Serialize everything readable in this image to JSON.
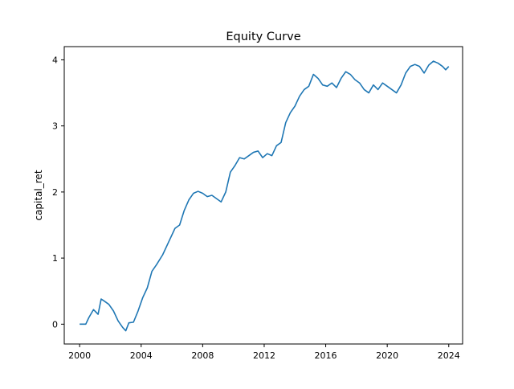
{
  "chart_data": {
    "type": "line",
    "title": "Equity Curve",
    "xlabel": "",
    "ylabel": "capital_ret",
    "xlim": [
      1999.0,
      2024.9
    ],
    "ylim": [
      -0.3,
      4.2
    ],
    "x_ticks": [
      2000,
      2004,
      2008,
      2012,
      2016,
      2020,
      2024
    ],
    "x_tick_labels": [
      "2000",
      "2004",
      "2008",
      "2012",
      "2016",
      "2020",
      "2024"
    ],
    "y_ticks": [
      0,
      1,
      2,
      3,
      4
    ],
    "y_tick_labels": [
      "0",
      "1",
      "2",
      "3",
      "4"
    ],
    "grid": false,
    "series": [
      {
        "name": "",
        "color": "#1f77b4",
        "x": [
          2000.0,
          2000.4,
          2000.6,
          2000.9,
          2001.2,
          2001.4,
          2001.6,
          2001.9,
          2002.2,
          2002.5,
          2002.8,
          2003.0,
          2003.2,
          2003.5,
          2003.8,
          2004.1,
          2004.4,
          2004.7,
          2005.0,
          2005.4,
          2005.8,
          2006.2,
          2006.5,
          2006.8,
          2007.1,
          2007.4,
          2007.7,
          2008.0,
          2008.3,
          2008.6,
          2008.9,
          2009.2,
          2009.5,
          2009.8,
          2010.1,
          2010.4,
          2010.7,
          2011.0,
          2011.3,
          2011.6,
          2011.9,
          2012.2,
          2012.5,
          2012.8,
          2013.1,
          2013.4,
          2013.7,
          2014.0,
          2014.3,
          2014.6,
          2014.9,
          2015.2,
          2015.5,
          2015.8,
          2016.1,
          2016.4,
          2016.7,
          2017.0,
          2017.3,
          2017.6,
          2017.9,
          2018.2,
          2018.5,
          2018.8,
          2019.1,
          2019.4,
          2019.7,
          2020.0,
          2020.3,
          2020.6,
          2020.9,
          2021.2,
          2021.5,
          2021.8,
          2022.1,
          2022.4,
          2022.7,
          2023.0,
          2023.3,
          2023.6,
          2023.8,
          2024.0
        ],
        "y": [
          0.0,
          0.0,
          0.1,
          0.22,
          0.15,
          0.38,
          0.35,
          0.3,
          0.2,
          0.05,
          -0.05,
          -0.1,
          0.02,
          0.03,
          0.2,
          0.4,
          0.55,
          0.8,
          0.9,
          1.05,
          1.25,
          1.45,
          1.5,
          1.72,
          1.88,
          1.98,
          2.01,
          1.98,
          1.93,
          1.95,
          1.9,
          1.85,
          2.0,
          2.3,
          2.4,
          2.52,
          2.5,
          2.55,
          2.6,
          2.62,
          2.52,
          2.58,
          2.55,
          2.7,
          2.75,
          3.05,
          3.2,
          3.3,
          3.45,
          3.55,
          3.6,
          3.78,
          3.72,
          3.62,
          3.6,
          3.65,
          3.58,
          3.72,
          3.82,
          3.78,
          3.7,
          3.65,
          3.55,
          3.5,
          3.62,
          3.55,
          3.65,
          3.6,
          3.55,
          3.5,
          3.62,
          3.8,
          3.9,
          3.93,
          3.9,
          3.8,
          3.92,
          3.98,
          3.95,
          3.9,
          3.85,
          3.9
        ]
      }
    ]
  }
}
